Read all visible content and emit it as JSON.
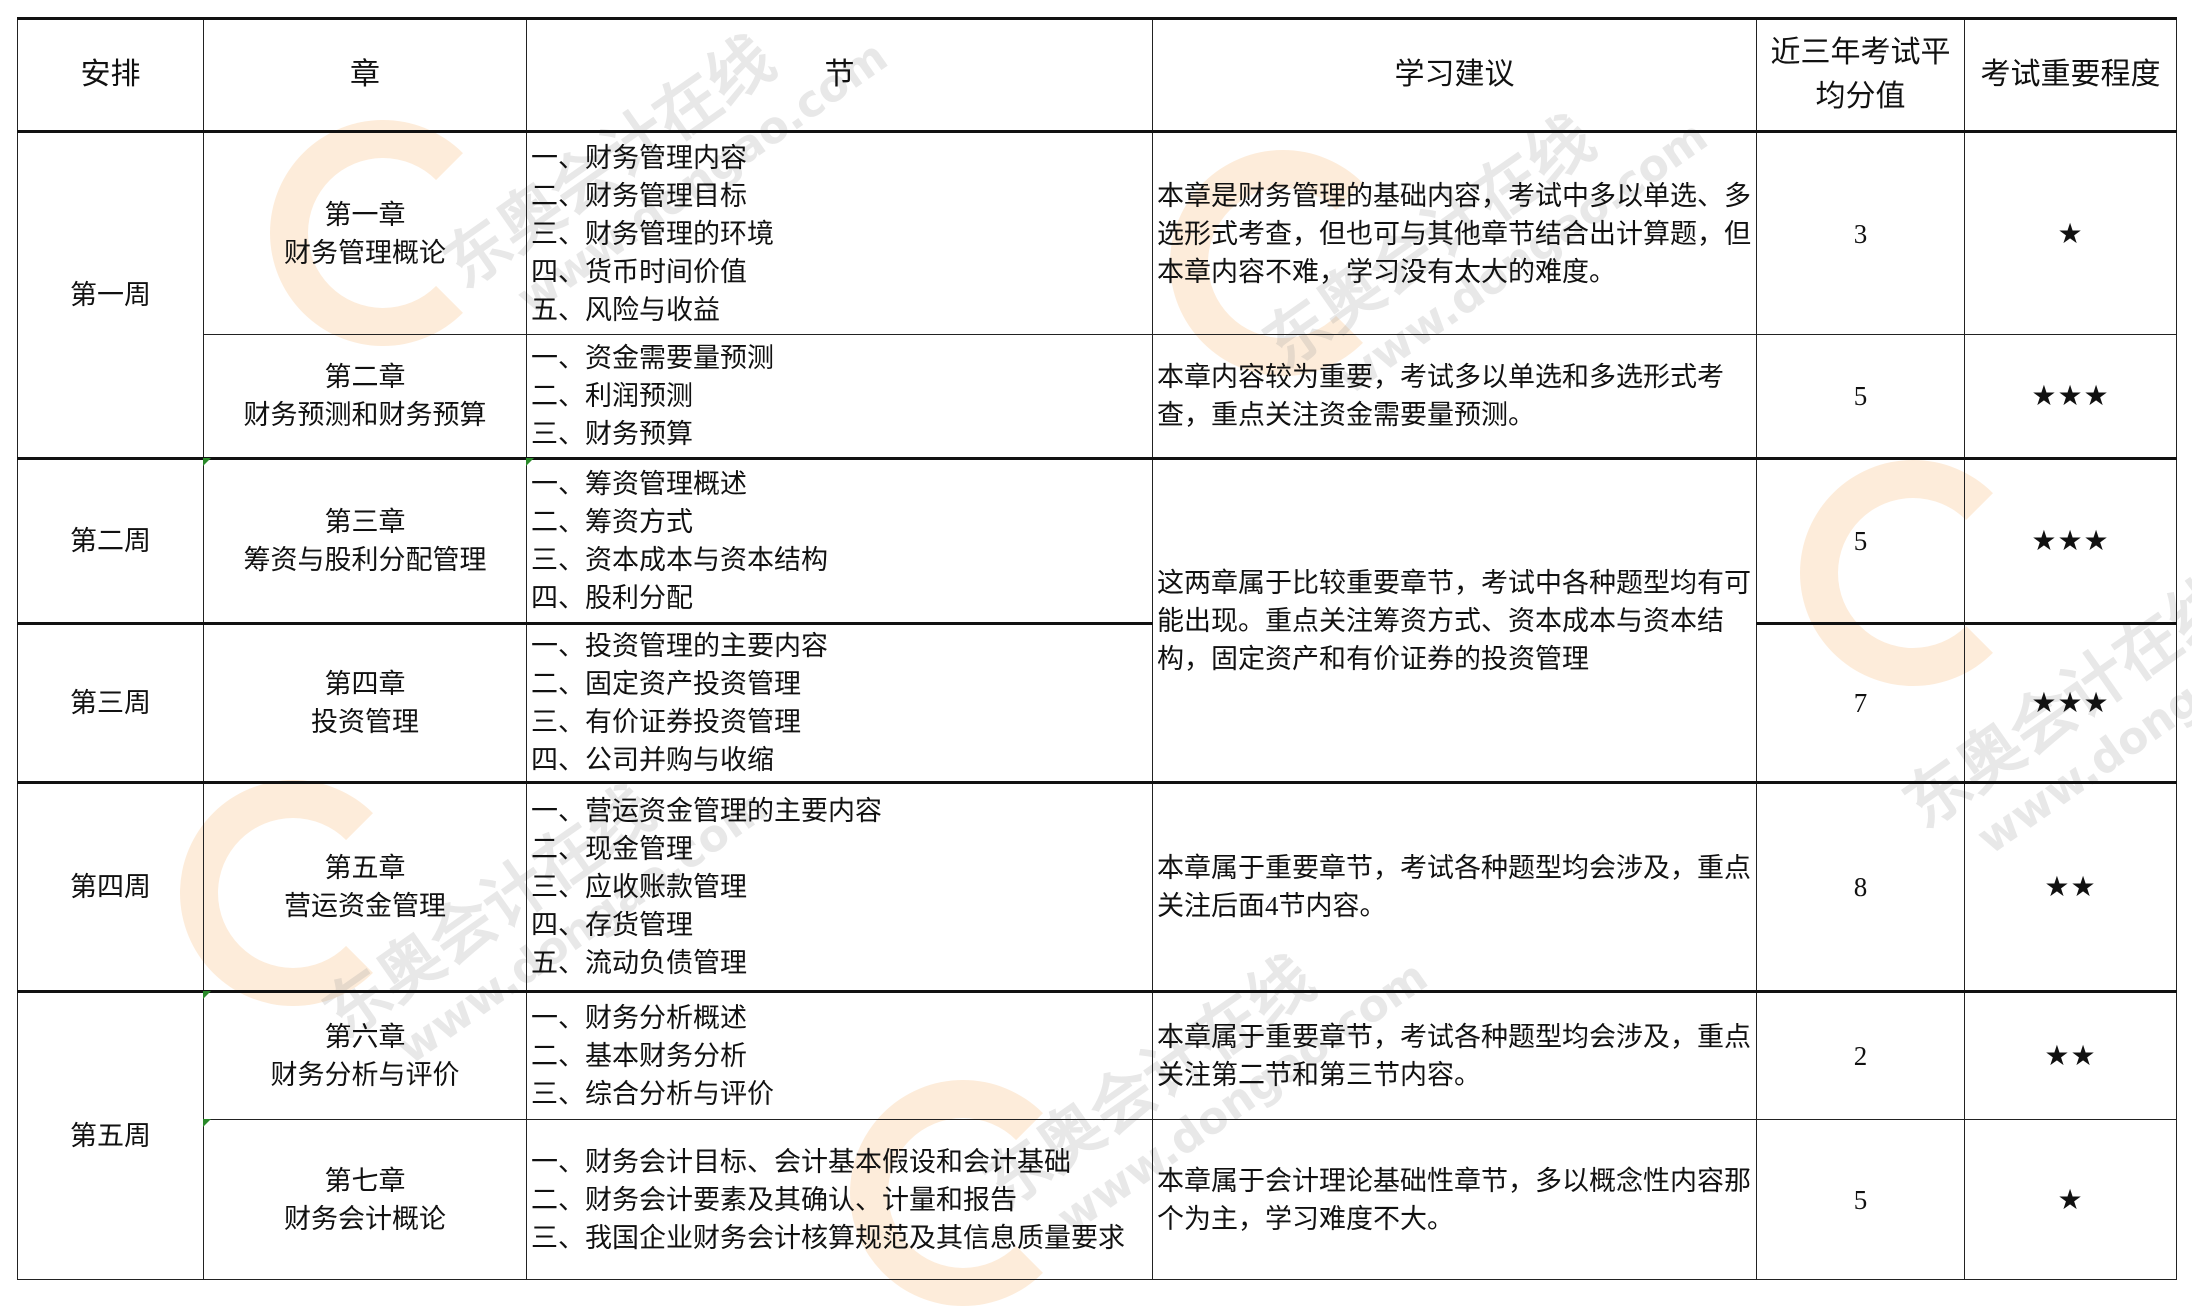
{
  "watermark": {
    "brand": "东奥会计在线",
    "url": "www.dongao.com"
  },
  "header": {
    "arrange": "安排",
    "chapter": "章",
    "section": "节",
    "advice": "学习建议",
    "avg_score": "近三年考试平均分值",
    "importance": "考试重要程度"
  },
  "rows": [
    {
      "week": "第一周",
      "chapter_no": "第一章",
      "chapter_name": "财务管理概论",
      "sections": [
        "一、财务管理内容",
        "二、财务管理目标",
        "三、财务管理的环境",
        "四、货币时间价值",
        "五、风险与收益"
      ],
      "advice": "本章是财务管理的基础内容，考试中多以单选、多选形式考查，但也可与其他章节结合出计算题，但本章内容不难，学习没有太大的难度。",
      "score": "3",
      "stars": "★"
    },
    {
      "week": "",
      "chapter_no": "第二章",
      "chapter_name": "财务预测和财务预算",
      "sections": [
        "一、资金需要量预测",
        "二、利润预测",
        "三、财务预算"
      ],
      "advice": "本章内容较为重要，考试多以单选和多选形式考查，重点关注资金需要量预测。",
      "score": "5",
      "stars": "★★★"
    },
    {
      "week": "第二周",
      "chapter_no": "第三章",
      "chapter_name": "筹资与股利分配管理",
      "sections": [
        "一、筹资管理概述",
        "二、筹资方式",
        "三、资本成本与资本结构",
        "四、股利分配"
      ],
      "advice": "这两章属于比较重要章节，考试中各种题型均有可能出现。重点关注筹资方式、资本成本与资本结构，固定资产和有价证券的投资管理",
      "score": "5",
      "stars": "★★★"
    },
    {
      "week": "第三周",
      "chapter_no": "第四章",
      "chapter_name": "投资管理",
      "sections": [
        "一、投资管理的主要内容",
        "二、固定资产投资管理",
        "三、有价证券投资管理",
        "四、公司并购与收缩"
      ],
      "advice": "",
      "score": "7",
      "stars": "★★★"
    },
    {
      "week": "第四周",
      "chapter_no": "第五章",
      "chapter_name": "营运资金管理",
      "sections": [
        "一、营运资金管理的主要内容",
        "二、现金管理",
        "三、应收账款管理",
        "四、存货管理",
        "五、流动负债管理"
      ],
      "advice": "本章属于重要章节，考试各种题型均会涉及，重点关注后面4节内容。",
      "score": "8",
      "stars": "★★"
    },
    {
      "week": "第五周",
      "chapter_no": "第六章",
      "chapter_name": "财务分析与评价",
      "sections": [
        "一、财务分析概述",
        "二、基本财务分析",
        "三、综合分析与评价"
      ],
      "advice": "本章属于重要章节，考试各种题型均会涉及，重点关注第二节和第三节内容。",
      "score": "2",
      "stars": "★★"
    },
    {
      "week": "",
      "chapter_no": "第七章",
      "chapter_name": "财务会计概论",
      "sections": [
        "一、财务会计目标、会计基本假设和会计基础",
        "二、财务会计要素及其确认、计量和报告",
        "三、我国企业财务会计核算规范及其信息质量要求"
      ],
      "advice": "本章属于会计理论基础性章节，多以概念性内容那个为主，学习难度不大。",
      "score": "5",
      "stars": "★"
    }
  ]
}
